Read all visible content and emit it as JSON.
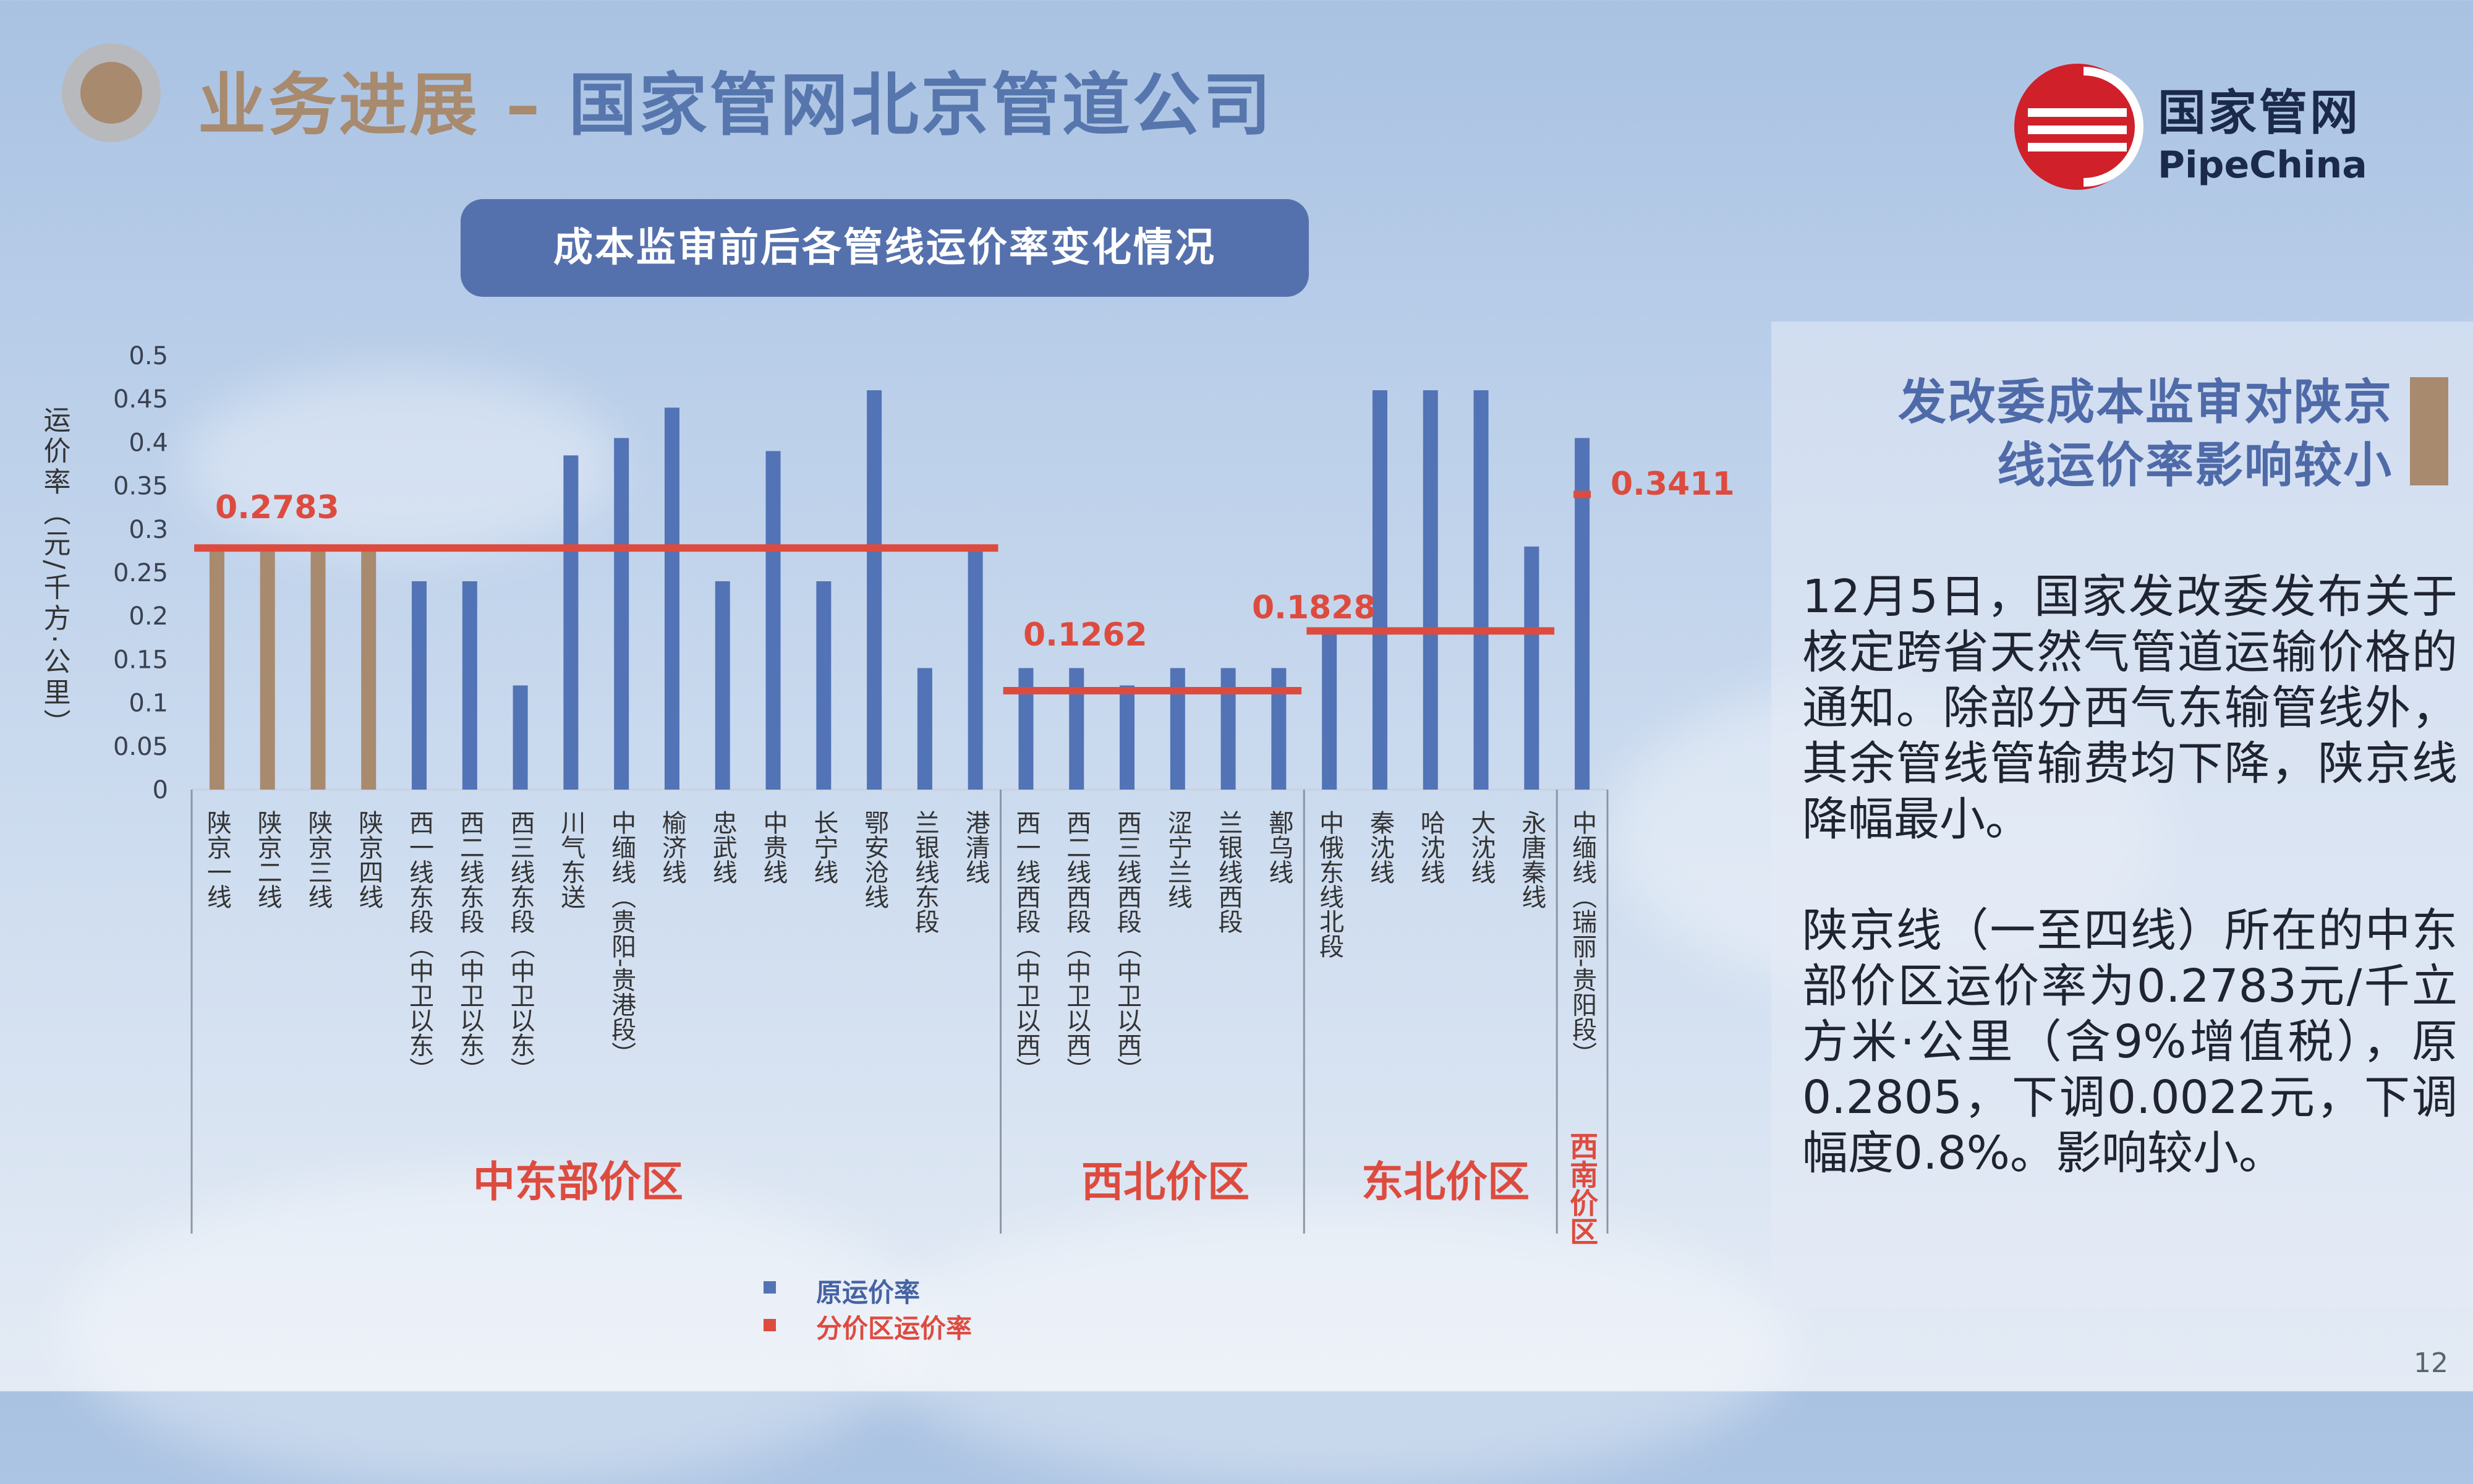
{
  "page": {
    "title_part1": "业务进展 –",
    "title_part2": "国家管网北京管道公司",
    "logo_cn": "国家管网",
    "logo_en": "PipeChina",
    "page_number": "12"
  },
  "chart_heading": "成本监审前后各管线运价率变化情况",
  "panel": {
    "title_line1": "发改委成本监审对陕京",
    "title_line2": "线运价率影响较小",
    "para1": "12月5日，国家发改委发布关于核定跨省天然气管道运输价格的通知。除部分西气东输管线外，其余管线管输费均下降，陕京线降幅最小。",
    "para2": "陕京线（一至四线）所在的中东部价区运价率为0.2783元/千立方米·公里（含9%增值税），原0.2805，下调0.0022元，下调幅度0.8%。影响较小。"
  },
  "colors": {
    "blue": "#5273b5",
    "brown": "#a88a6f",
    "red": "#dd4b3f"
  },
  "chart_data": {
    "type": "bar",
    "ylabel": "运价率（元/千方·公里）",
    "ylim": [
      0,
      0.5
    ],
    "yticks": [
      "0",
      "0.05",
      "0.1",
      "0.15",
      "0.2",
      "0.25",
      "0.3",
      "0.35",
      "0.4",
      "0.45",
      "0.5"
    ],
    "categories": [
      "陕京一线",
      "陕京二线",
      "陕京三线",
      "陕京四线",
      "西一线东段（中卫以东）",
      "西二线东段（中卫以东）",
      "西三线东段（中卫以东）",
      "川气东送",
      "中缅线（贵阳-贵港段）",
      "榆济线",
      "忠武线",
      "中贵线",
      "长宁线",
      "鄂安沧线",
      "兰银线东段",
      "港清线",
      "西一线西段（中卫以西）",
      "西二线西段（中卫以西）",
      "西三线西段（中卫以西）",
      "涩宁兰线",
      "兰银线西段",
      "鄯乌线",
      "中俄东线北段",
      "秦沈线",
      "哈沈线",
      "大沈线",
      "永唐秦线",
      "中缅线（瑞丽-贵阳段）"
    ],
    "series": [
      {
        "name": "原运价率",
        "values": [
          0.2805,
          0.2805,
          0.2805,
          0.2805,
          0.24,
          0.24,
          0.12,
          0.385,
          0.405,
          0.44,
          0.24,
          0.39,
          0.24,
          0.46,
          0.14,
          0.28,
          0.14,
          0.14,
          0.12,
          0.14,
          0.14,
          0.14,
          0.18,
          0.46,
          0.46,
          0.46,
          0.28,
          0.405
        ],
        "highlight": [
          true,
          true,
          true,
          true,
          false,
          false,
          false,
          false,
          false,
          false,
          false,
          false,
          false,
          false,
          false,
          false,
          false,
          false,
          false,
          false,
          false,
          false,
          false,
          false,
          false,
          false,
          false,
          false
        ]
      },
      {
        "name": "分价区运价率",
        "regions": [
          {
            "name": "中东部价区",
            "from": 0,
            "to": 15,
            "value": 0.2783,
            "label": "0.2783"
          },
          {
            "name": "西北价区",
            "from": 16,
            "to": 21,
            "value": 0.1262,
            "label": "0.1262"
          },
          {
            "name": "东北价区",
            "from": 22,
            "to": 26,
            "value": 0.1828,
            "label": "0.1828"
          },
          {
            "name": "西南价区",
            "from": 27,
            "to": 27,
            "value": 0.3411,
            "label": "0.3411"
          }
        ]
      }
    ],
    "legend": [
      "原运价率",
      "分价区运价率"
    ],
    "legend_position": "bottom"
  }
}
